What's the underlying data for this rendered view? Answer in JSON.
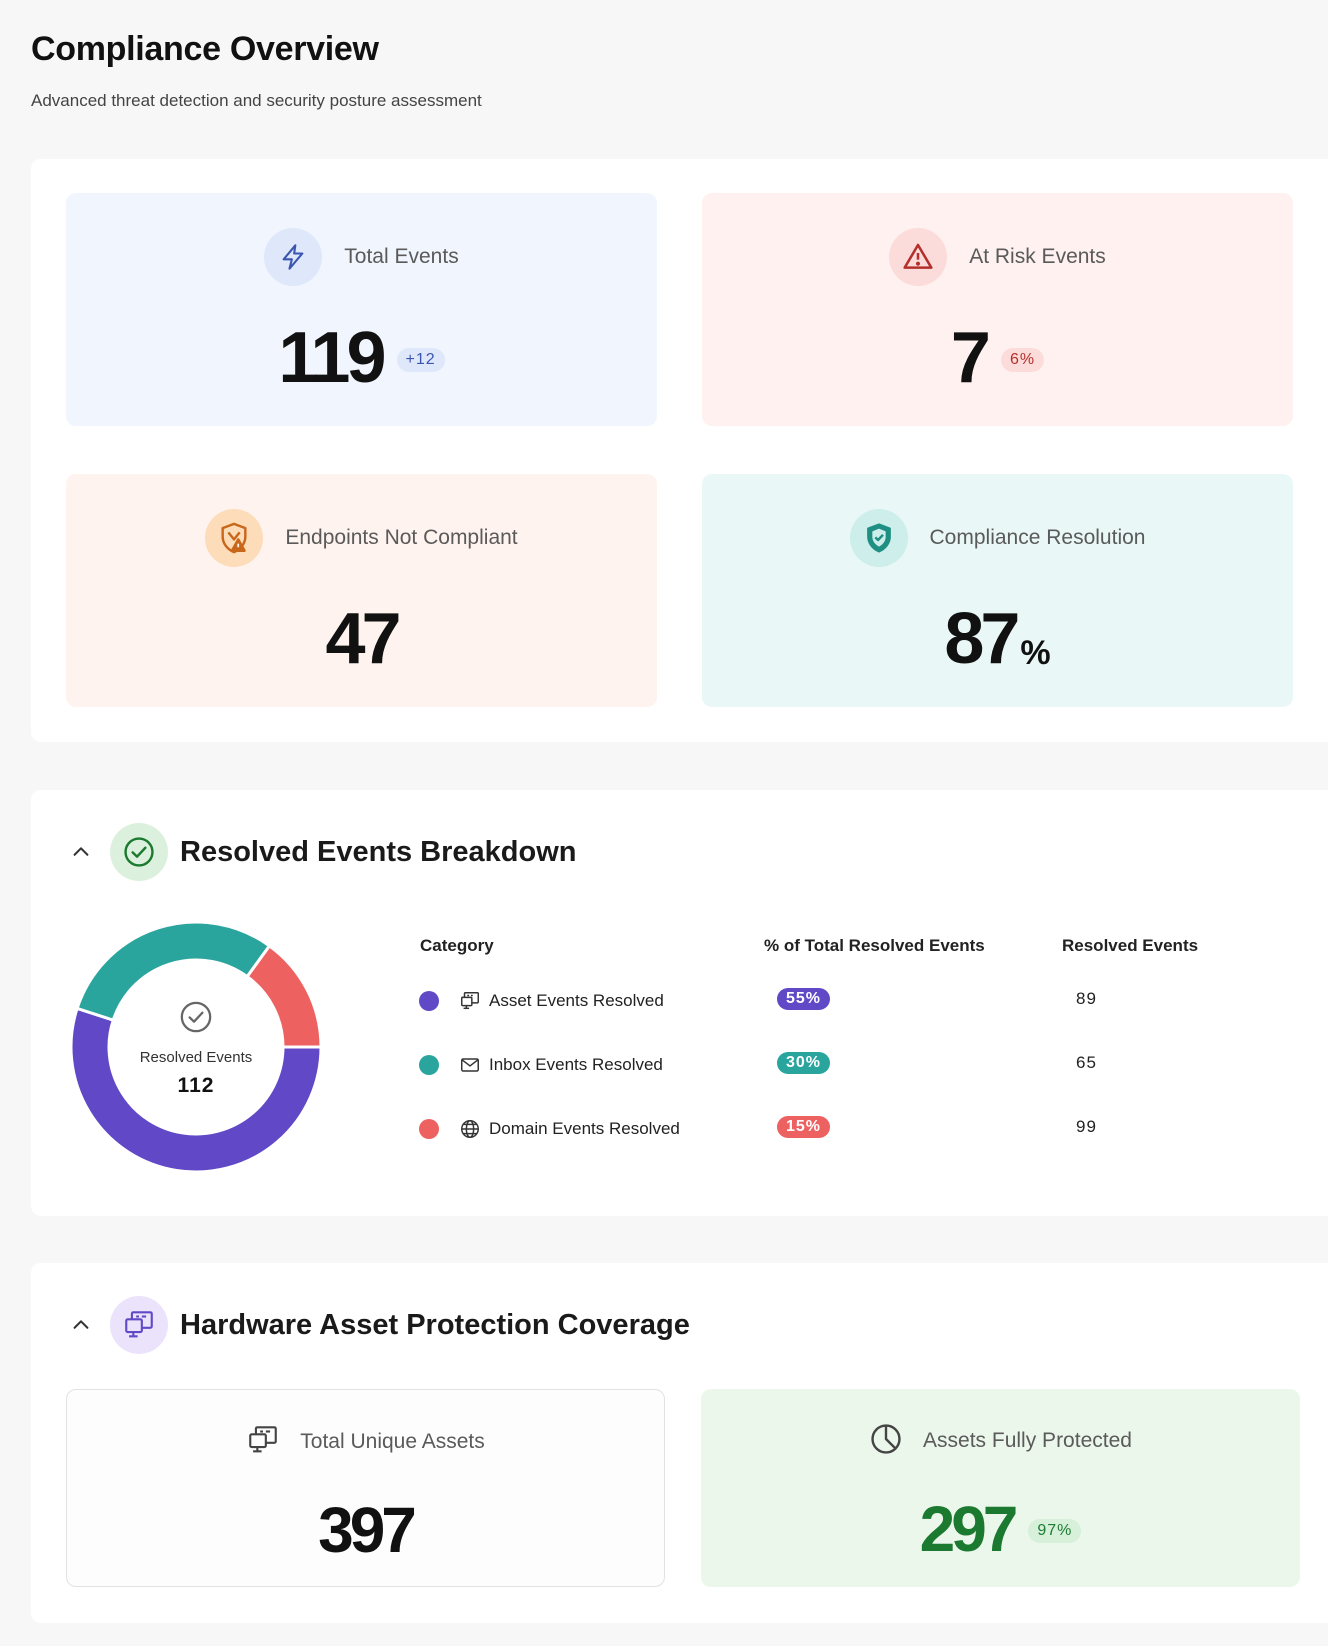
{
  "header": {
    "title": "Compliance Overview",
    "subtitle": "Advanced threat detection and security posture assessment"
  },
  "kpis": {
    "total_events": {
      "label": "Total Events",
      "value": "119",
      "delta": "+12",
      "icon": "lightning-icon",
      "color": "#3b56b0"
    },
    "at_risk_events": {
      "label": "At Risk Events",
      "value": "7",
      "delta": "6%",
      "icon": "warning-triangle-icon",
      "color": "#b3302b"
    },
    "endpoints_not_compliant": {
      "label": "Endpoints Not Compliant",
      "value": "47",
      "icon": "shield-warning-icon",
      "color": "#c8661a"
    },
    "compliance_resolution": {
      "label": "Compliance Resolution",
      "value": "87",
      "unit": "%",
      "icon": "shield-check-icon",
      "color": "#1f8f83"
    }
  },
  "resolved": {
    "title": "Resolved Events Breakdown",
    "donut": {
      "caption": "Resolved Events",
      "total": "112"
    },
    "headers": {
      "category": "Category",
      "percent": "% of Total Resolved Events",
      "count": "Resolved Events"
    },
    "rows": [
      {
        "label": "Asset Events Resolved",
        "percent": "55%",
        "count": "89",
        "color": "#6148c6",
        "icon": "monitor-icon"
      },
      {
        "label": "Inbox Events Resolved",
        "percent": "30%",
        "count": "65",
        "color": "#2aa59e",
        "icon": "envelope-icon"
      },
      {
        "label": "Domain Events Resolved",
        "percent": "15%",
        "count": "99",
        "color": "#ee6161",
        "icon": "globe-icon"
      }
    ]
  },
  "chart_data": {
    "type": "pie",
    "categories": [
      "Asset Events Resolved",
      "Inbox Events Resolved",
      "Domain Events Resolved"
    ],
    "values": [
      55,
      30,
      15
    ],
    "colors": [
      "#6148c6",
      "#2aa59e",
      "#ee6161"
    ],
    "title": "",
    "center_label": "Resolved Events",
    "center_value": 112
  },
  "hardware": {
    "title": "Hardware Asset Protection Coverage",
    "total_assets": {
      "label": "Total Unique Assets",
      "value": "397"
    },
    "protected": {
      "label": "Assets Fully Protected",
      "value": "297",
      "percent": "97%",
      "color": "#1b7a2f"
    }
  }
}
